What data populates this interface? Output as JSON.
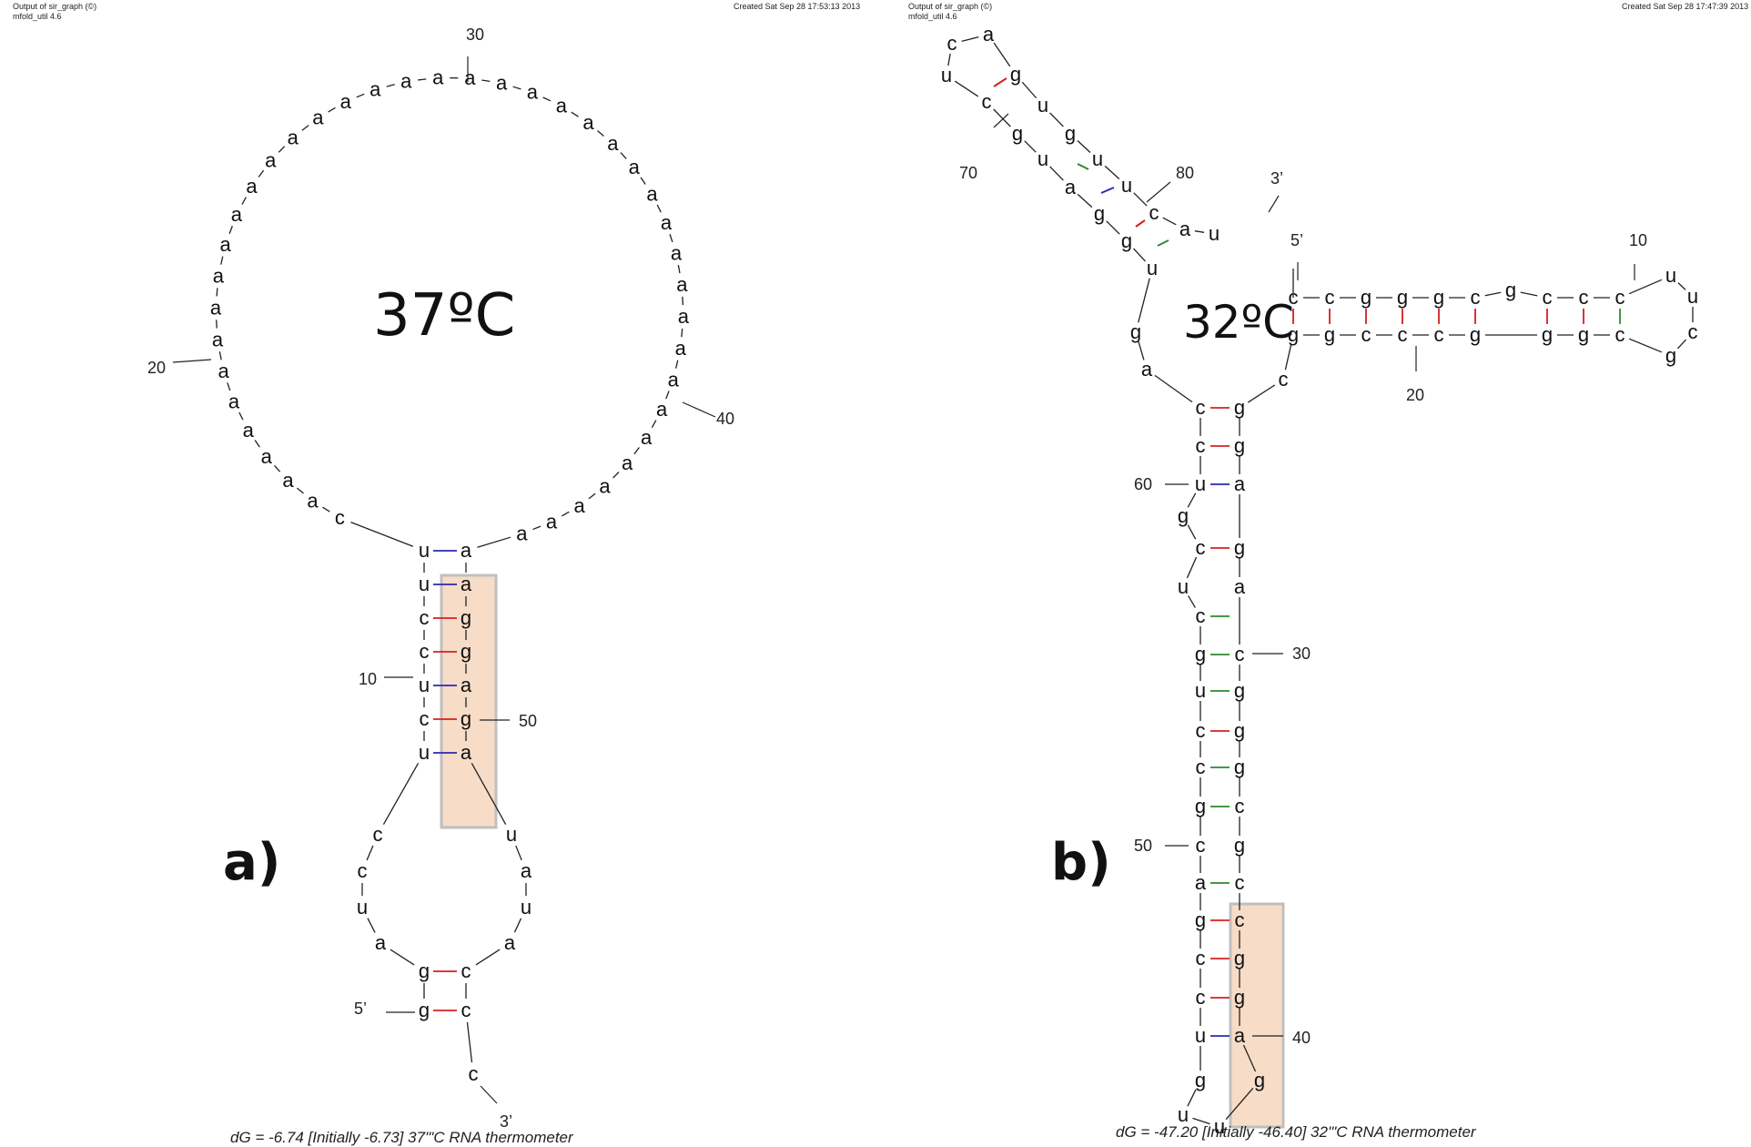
{
  "panel_a": {
    "header_left_line1": "Output of sir_graph (©)",
    "header_left_line2": "mfold_util 4.6",
    "header_right": "Created Sat Sep 28 17:53:13 2013",
    "temperature": "37ºC",
    "panel_label": "a)",
    "energy_line": "dG = -6.74 [Initially -6.73] 37'\"C RNA thermometer",
    "number_labels": [
      "30",
      "20",
      "40",
      "10",
      "50",
      "5’",
      "3’"
    ],
    "loop_bases": [
      "a",
      "a",
      "a",
      "a",
      "a",
      "a",
      "a",
      "a",
      "a",
      "a",
      "a",
      "a",
      "a",
      "a",
      "a",
      "a",
      "a",
      "a",
      "a",
      "a",
      "a",
      "a",
      "a",
      "a",
      "a",
      "a",
      "a",
      "a",
      "a",
      "a",
      "a",
      "a",
      "a",
      "a",
      "a",
      "a",
      "a",
      "a",
      "a",
      "a",
      "c"
    ],
    "stem_left": [
      "u",
      "u",
      "c",
      "c",
      "u",
      "c",
      "u"
    ],
    "stem_right": [
      "a",
      "a",
      "g",
      "g",
      "a",
      "g",
      "a"
    ],
    "bottom_left": [
      "c",
      "c",
      "u",
      "a"
    ],
    "bottom_right": [
      "u",
      "a",
      "u",
      "a"
    ],
    "base_pairs": [
      [
        "g",
        "c"
      ],
      [
        "g",
        "c"
      ]
    ],
    "tail": "c"
  },
  "panel_b": {
    "header_left_line1": "Output of sir_graph (©)",
    "header_left_line2": "mfold_util 4.6",
    "header_right": "Created Sat Sep 28 17:47:39 2013",
    "temperature": "32ºC",
    "panel_label": "b)",
    "energy_line": "dG = -47.20 [Initially -46.40] 32'\"C RNA thermometer",
    "number_labels": [
      "70",
      "80",
      "3’",
      "5’",
      "10",
      "20",
      "60",
      "30",
      "50",
      "40"
    ],
    "hairpin_top_bases": [
      "c",
      "a",
      "u",
      "g",
      "c",
      "u",
      "g",
      "g",
      "u",
      "u",
      "a",
      "u",
      "g",
      "c",
      "g",
      "u"
    ],
    "tail_3prime": [
      "a",
      "u"
    ],
    "arm_top": [
      "c",
      "c",
      "g",
      "g",
      "g",
      "c",
      "g",
      "c",
      "c",
      "c"
    ],
    "arm_bottom": [
      "g",
      "g",
      "c",
      "c",
      "c",
      "g",
      "g",
      "g",
      "c"
    ],
    "arm_loop": [
      "u",
      "u",
      "c",
      "g"
    ],
    "junction_bases": [
      "g",
      "a",
      "c"
    ],
    "stem_left": [
      "c",
      "c",
      "u",
      "g",
      "c",
      "u",
      "c",
      "g",
      "u",
      "c",
      "c",
      "g",
      "c",
      "a",
      "g",
      "c",
      "c",
      "u",
      "g",
      "u"
    ],
    "stem_right": [
      "g",
      "g",
      "a",
      "g",
      "a",
      "c",
      "g",
      "g",
      "g",
      "c",
      "g",
      "c",
      "c",
      "g",
      "g",
      "a",
      "g"
    ]
  }
}
